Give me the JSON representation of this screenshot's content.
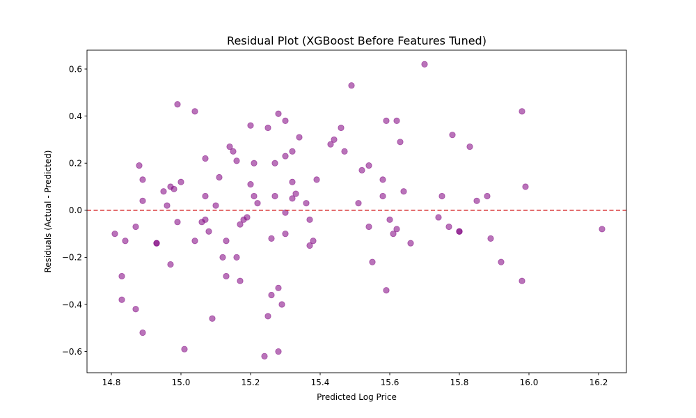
{
  "chart_data": {
    "type": "scatter",
    "title": "Residual Plot (XGBoost Before Features Tuned)",
    "xlabel": "Predicted Log Price",
    "ylabel": "Residuals (Actual - Predicted)",
    "xlim": [
      14.73,
      16.28
    ],
    "ylim": [
      -0.69,
      0.68
    ],
    "xticks": [
      14.8,
      15.0,
      15.2,
      15.4,
      15.6,
      15.8,
      16.0,
      16.2
    ],
    "xtick_labels": [
      "14.8",
      "15.0",
      "15.2",
      "15.4",
      "15.6",
      "15.8",
      "16.0",
      "16.2"
    ],
    "yticks": [
      -0.6,
      -0.4,
      -0.2,
      0.0,
      0.2,
      0.4,
      0.6
    ],
    "ytick_labels": [
      "−0.6",
      "−0.4",
      "−0.2",
      "0.0",
      "0.2",
      "0.4",
      "0.6"
    ],
    "grid": false,
    "reference_line": {
      "y": 0.0,
      "style": "dashed",
      "color": "#d62728"
    },
    "marker_color": "#800080",
    "marker_opacity": 0.55,
    "points": [
      [
        14.81,
        -0.1
      ],
      [
        14.83,
        -0.28
      ],
      [
        14.83,
        -0.38
      ],
      [
        14.84,
        -0.13
      ],
      [
        14.87,
        -0.07
      ],
      [
        14.87,
        -0.42
      ],
      [
        14.88,
        0.19
      ],
      [
        14.89,
        0.04
      ],
      [
        14.89,
        0.13
      ],
      [
        14.89,
        -0.52
      ],
      [
        14.93,
        -0.14
      ],
      [
        14.93,
        -0.14
      ],
      [
        14.95,
        0.08
      ],
      [
        14.96,
        0.02
      ],
      [
        14.97,
        0.1
      ],
      [
        14.97,
        -0.23
      ],
      [
        14.98,
        0.09
      ],
      [
        14.99,
        -0.05
      ],
      [
        14.99,
        0.45
      ],
      [
        15.0,
        0.12
      ],
      [
        15.01,
        -0.59
      ],
      [
        15.04,
        0.42
      ],
      [
        15.04,
        -0.13
      ],
      [
        15.06,
        -0.05
      ],
      [
        15.07,
        0.22
      ],
      [
        15.07,
        0.06
      ],
      [
        15.07,
        -0.04
      ],
      [
        15.08,
        -0.09
      ],
      [
        15.09,
        -0.46
      ],
      [
        15.1,
        0.02
      ],
      [
        15.11,
        0.14
      ],
      [
        15.12,
        -0.2
      ],
      [
        15.13,
        -0.28
      ],
      [
        15.13,
        -0.13
      ],
      [
        15.14,
        0.27
      ],
      [
        15.15,
        0.25
      ],
      [
        15.16,
        0.21
      ],
      [
        15.16,
        -0.2
      ],
      [
        15.17,
        -0.06
      ],
      [
        15.17,
        -0.3
      ],
      [
        15.18,
        -0.04
      ],
      [
        15.19,
        -0.03
      ],
      [
        15.2,
        0.36
      ],
      [
        15.2,
        0.11
      ],
      [
        15.21,
        0.2
      ],
      [
        15.21,
        0.06
      ],
      [
        15.22,
        0.03
      ],
      [
        15.24,
        -0.62
      ],
      [
        15.25,
        -0.45
      ],
      [
        15.25,
        0.35
      ],
      [
        15.26,
        -0.12
      ],
      [
        15.26,
        -0.36
      ],
      [
        15.27,
        0.06
      ],
      [
        15.27,
        0.2
      ],
      [
        15.28,
        -0.33
      ],
      [
        15.28,
        0.41
      ],
      [
        15.28,
        -0.6
      ],
      [
        15.29,
        -0.4
      ],
      [
        15.3,
        0.23
      ],
      [
        15.3,
        -0.01
      ],
      [
        15.3,
        0.38
      ],
      [
        15.3,
        -0.1
      ],
      [
        15.32,
        0.05
      ],
      [
        15.32,
        0.12
      ],
      [
        15.32,
        0.25
      ],
      [
        15.33,
        0.07
      ],
      [
        15.34,
        0.31
      ],
      [
        15.36,
        0.03
      ],
      [
        15.37,
        -0.04
      ],
      [
        15.37,
        -0.15
      ],
      [
        15.38,
        -0.13
      ],
      [
        15.39,
        0.13
      ],
      [
        15.43,
        0.28
      ],
      [
        15.44,
        0.3
      ],
      [
        15.46,
        0.35
      ],
      [
        15.47,
        0.25
      ],
      [
        15.49,
        0.53
      ],
      [
        15.51,
        0.03
      ],
      [
        15.52,
        0.17
      ],
      [
        15.54,
        0.19
      ],
      [
        15.54,
        -0.07
      ],
      [
        15.55,
        -0.22
      ],
      [
        15.58,
        0.13
      ],
      [
        15.58,
        0.06
      ],
      [
        15.59,
        0.38
      ],
      [
        15.59,
        -0.34
      ],
      [
        15.6,
        -0.04
      ],
      [
        15.61,
        -0.1
      ],
      [
        15.62,
        0.38
      ],
      [
        15.62,
        -0.08
      ],
      [
        15.63,
        0.29
      ],
      [
        15.64,
        0.08
      ],
      [
        15.66,
        -0.14
      ],
      [
        15.7,
        0.62
      ],
      [
        15.74,
        -0.03
      ],
      [
        15.75,
        0.06
      ],
      [
        15.77,
        -0.07
      ],
      [
        15.78,
        0.32
      ],
      [
        15.8,
        -0.09
      ],
      [
        15.8,
        -0.09
      ],
      [
        15.83,
        0.27
      ],
      [
        15.85,
        0.04
      ],
      [
        15.88,
        0.06
      ],
      [
        15.89,
        -0.12
      ],
      [
        15.92,
        -0.22
      ],
      [
        15.98,
        -0.3
      ],
      [
        15.98,
        0.42
      ],
      [
        15.99,
        0.1
      ],
      [
        16.21,
        -0.08
      ]
    ]
  }
}
